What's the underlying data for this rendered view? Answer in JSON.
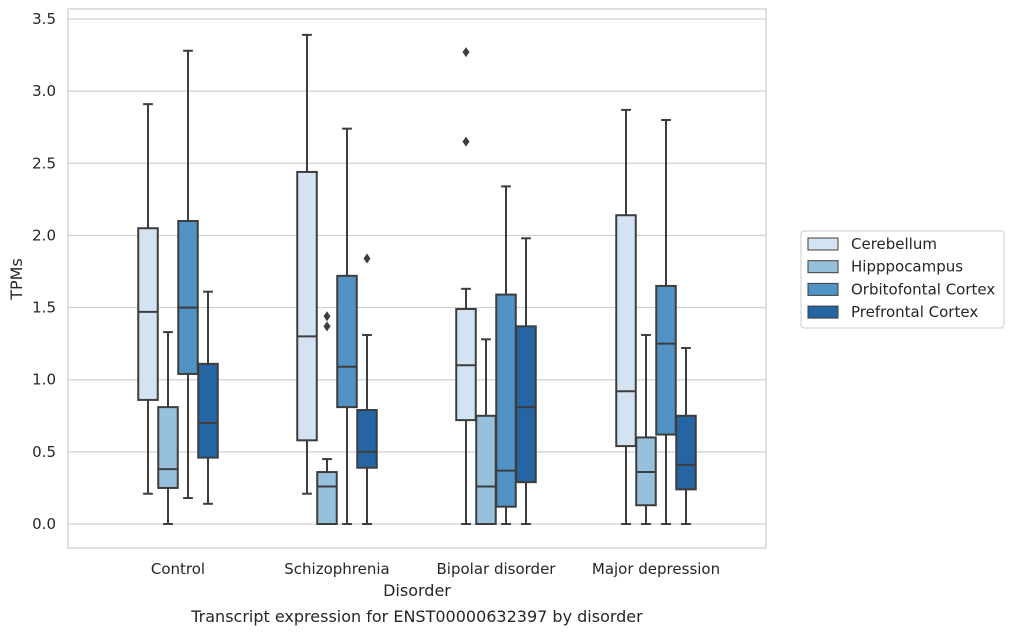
{
  "chart_data": {
    "type": "box",
    "xlabel": "Disorder",
    "ylabel": "TPMs",
    "caption": "Transcript expression for ENST00000632397 by disorder",
    "ylim": [
      -0.17,
      3.56
    ],
    "yticks": [
      "0.0",
      "0.5",
      "1.0",
      "1.5",
      "2.0",
      "2.5",
      "3.0",
      "3.5"
    ],
    "ytick_values": [
      0,
      0.5,
      1.0,
      1.5,
      2.0,
      2.5,
      3.0,
      3.5
    ],
    "grid": true,
    "legend_position": "right",
    "categories": [
      "Control",
      "Schizophrenia",
      "Bipolar disorder",
      "Major depression"
    ],
    "series": [
      {
        "name": "Cerebellum",
        "color": "#d4e3f2",
        "boxes": [
          {
            "whislo": 0.21,
            "q1": 0.86,
            "med": 1.47,
            "q3": 2.05,
            "whishi": 2.91,
            "fliers": []
          },
          {
            "whislo": 0.21,
            "q1": 0.58,
            "med": 1.3,
            "q3": 2.44,
            "whishi": 3.39,
            "fliers": []
          },
          {
            "whislo": 0.0,
            "q1": 0.72,
            "med": 1.1,
            "q3": 1.49,
            "whishi": 1.63,
            "fliers": [
              3.27,
              2.65
            ]
          },
          {
            "whislo": 0.0,
            "q1": 0.54,
            "med": 0.92,
            "q3": 2.14,
            "whishi": 2.87,
            "fliers": []
          }
        ]
      },
      {
        "name": "Hipppocampus",
        "color": "#97c0dc",
        "boxes": [
          {
            "whislo": 0.0,
            "q1": 0.25,
            "med": 0.38,
            "q3": 0.81,
            "whishi": 1.33,
            "fliers": []
          },
          {
            "whislo": 0.0,
            "q1": 0.0,
            "med": 0.26,
            "q3": 0.36,
            "whishi": 0.45,
            "fliers": [
              1.44,
              1.37
            ]
          },
          {
            "whislo": 0.0,
            "q1": 0.0,
            "med": 0.26,
            "q3": 0.75,
            "whishi": 1.28,
            "fliers": []
          },
          {
            "whislo": 0.0,
            "q1": 0.13,
            "med": 0.36,
            "q3": 0.6,
            "whishi": 1.31,
            "fliers": []
          }
        ]
      },
      {
        "name": "Orbitofontal Cortex",
        "color": "#5093c4",
        "boxes": [
          {
            "whislo": 0.18,
            "q1": 1.04,
            "med": 1.5,
            "q3": 2.1,
            "whishi": 3.28,
            "fliers": []
          },
          {
            "whislo": 0.0,
            "q1": 0.81,
            "med": 1.09,
            "q3": 1.72,
            "whishi": 2.74,
            "fliers": []
          },
          {
            "whislo": 0.0,
            "q1": 0.12,
            "med": 0.37,
            "q3": 1.59,
            "whishi": 2.34,
            "fliers": []
          },
          {
            "whislo": 0.0,
            "q1": 0.62,
            "med": 1.25,
            "q3": 1.65,
            "whishi": 2.8,
            "fliers": []
          }
        ]
      },
      {
        "name": "Prefrontal Cortex",
        "color": "#2565a3",
        "boxes": [
          {
            "whislo": 0.14,
            "q1": 0.46,
            "med": 0.7,
            "q3": 1.11,
            "whishi": 1.61,
            "fliers": []
          },
          {
            "whislo": 0.0,
            "q1": 0.39,
            "med": 0.5,
            "q3": 0.79,
            "whishi": 1.31,
            "fliers": [
              1.84
            ]
          },
          {
            "whislo": 0.0,
            "q1": 0.29,
            "med": 0.81,
            "q3": 1.37,
            "whishi": 1.98,
            "fliers": []
          },
          {
            "whislo": 0.0,
            "q1": 0.24,
            "med": 0.41,
            "q3": 0.75,
            "whishi": 1.22,
            "fliers": []
          }
        ]
      }
    ]
  }
}
